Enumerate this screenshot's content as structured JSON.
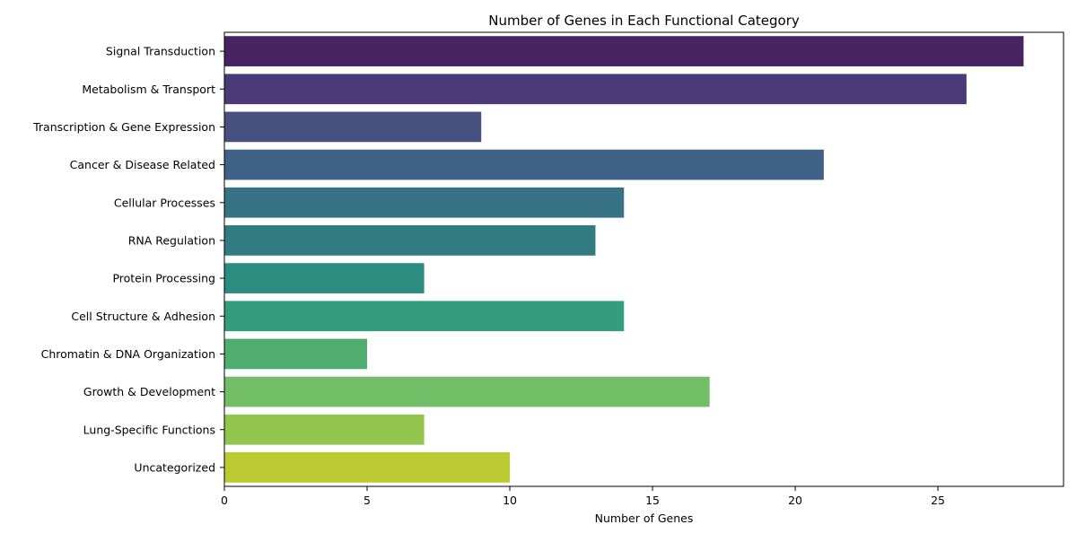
{
  "chart_data": {
    "type": "bar",
    "orientation": "horizontal",
    "title": "Number of Genes in Each Functional Category",
    "xlabel": "Number of Genes",
    "ylabel": "",
    "categories": [
      "Signal Transduction",
      "Metabolism & Transport",
      "Transcription & Gene Expression",
      "Cancer & Disease Related",
      "Cellular Processes",
      "RNA Regulation",
      "Protein Processing",
      "Cell Structure & Adhesion",
      "Chromatin & DNA Organization",
      "Growth & Development",
      "Lung-Specific Functions",
      "Uncategorized"
    ],
    "values": [
      28,
      26,
      9,
      21,
      14,
      13,
      7,
      14,
      5,
      17,
      7,
      10
    ],
    "colors": [
      "#472461",
      "#4a3a78",
      "#46517f",
      "#3f6185",
      "#377285",
      "#317b81",
      "#2c8c80",
      "#359c7b",
      "#4fae6f",
      "#71be66",
      "#94c54f",
      "#bcca31"
    ],
    "xlim": [
      0,
      29.4
    ],
    "xticks": [
      "0",
      "5",
      "10",
      "15",
      "20",
      "25"
    ],
    "grid": false,
    "legend": "none"
  }
}
